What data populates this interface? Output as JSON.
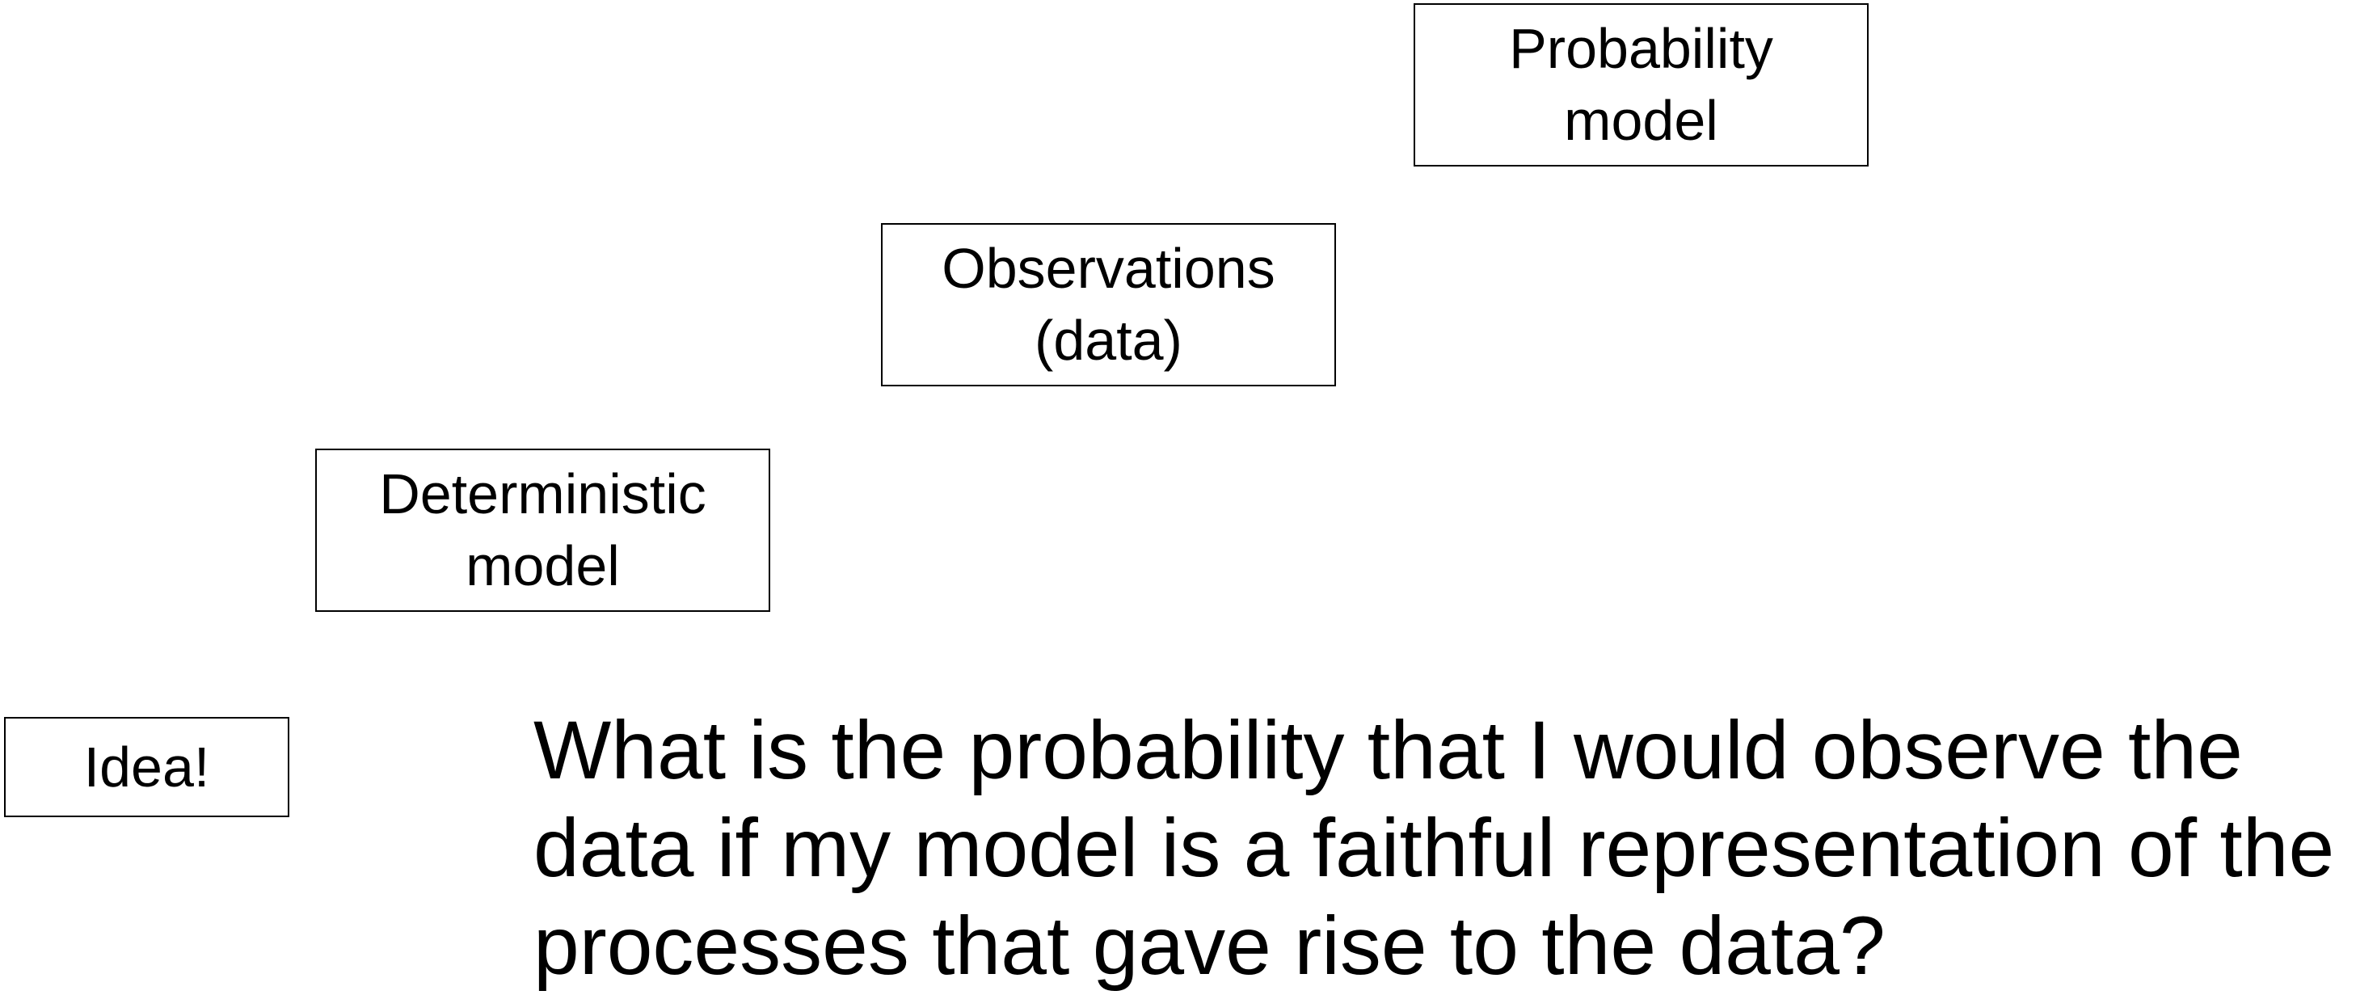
{
  "diagram": {
    "nodes": {
      "idea": {
        "label": "Idea!"
      },
      "deterministic_model": {
        "line1": "Deterministic",
        "line2": "model"
      },
      "observations": {
        "line1": "Observations",
        "line2": "(data)"
      },
      "probability_model": {
        "line1": "Probability",
        "line2": "model"
      }
    },
    "question": "What is the probability that I would observe the data if my model is a faithful representation of the processes that gave rise to the data?"
  }
}
